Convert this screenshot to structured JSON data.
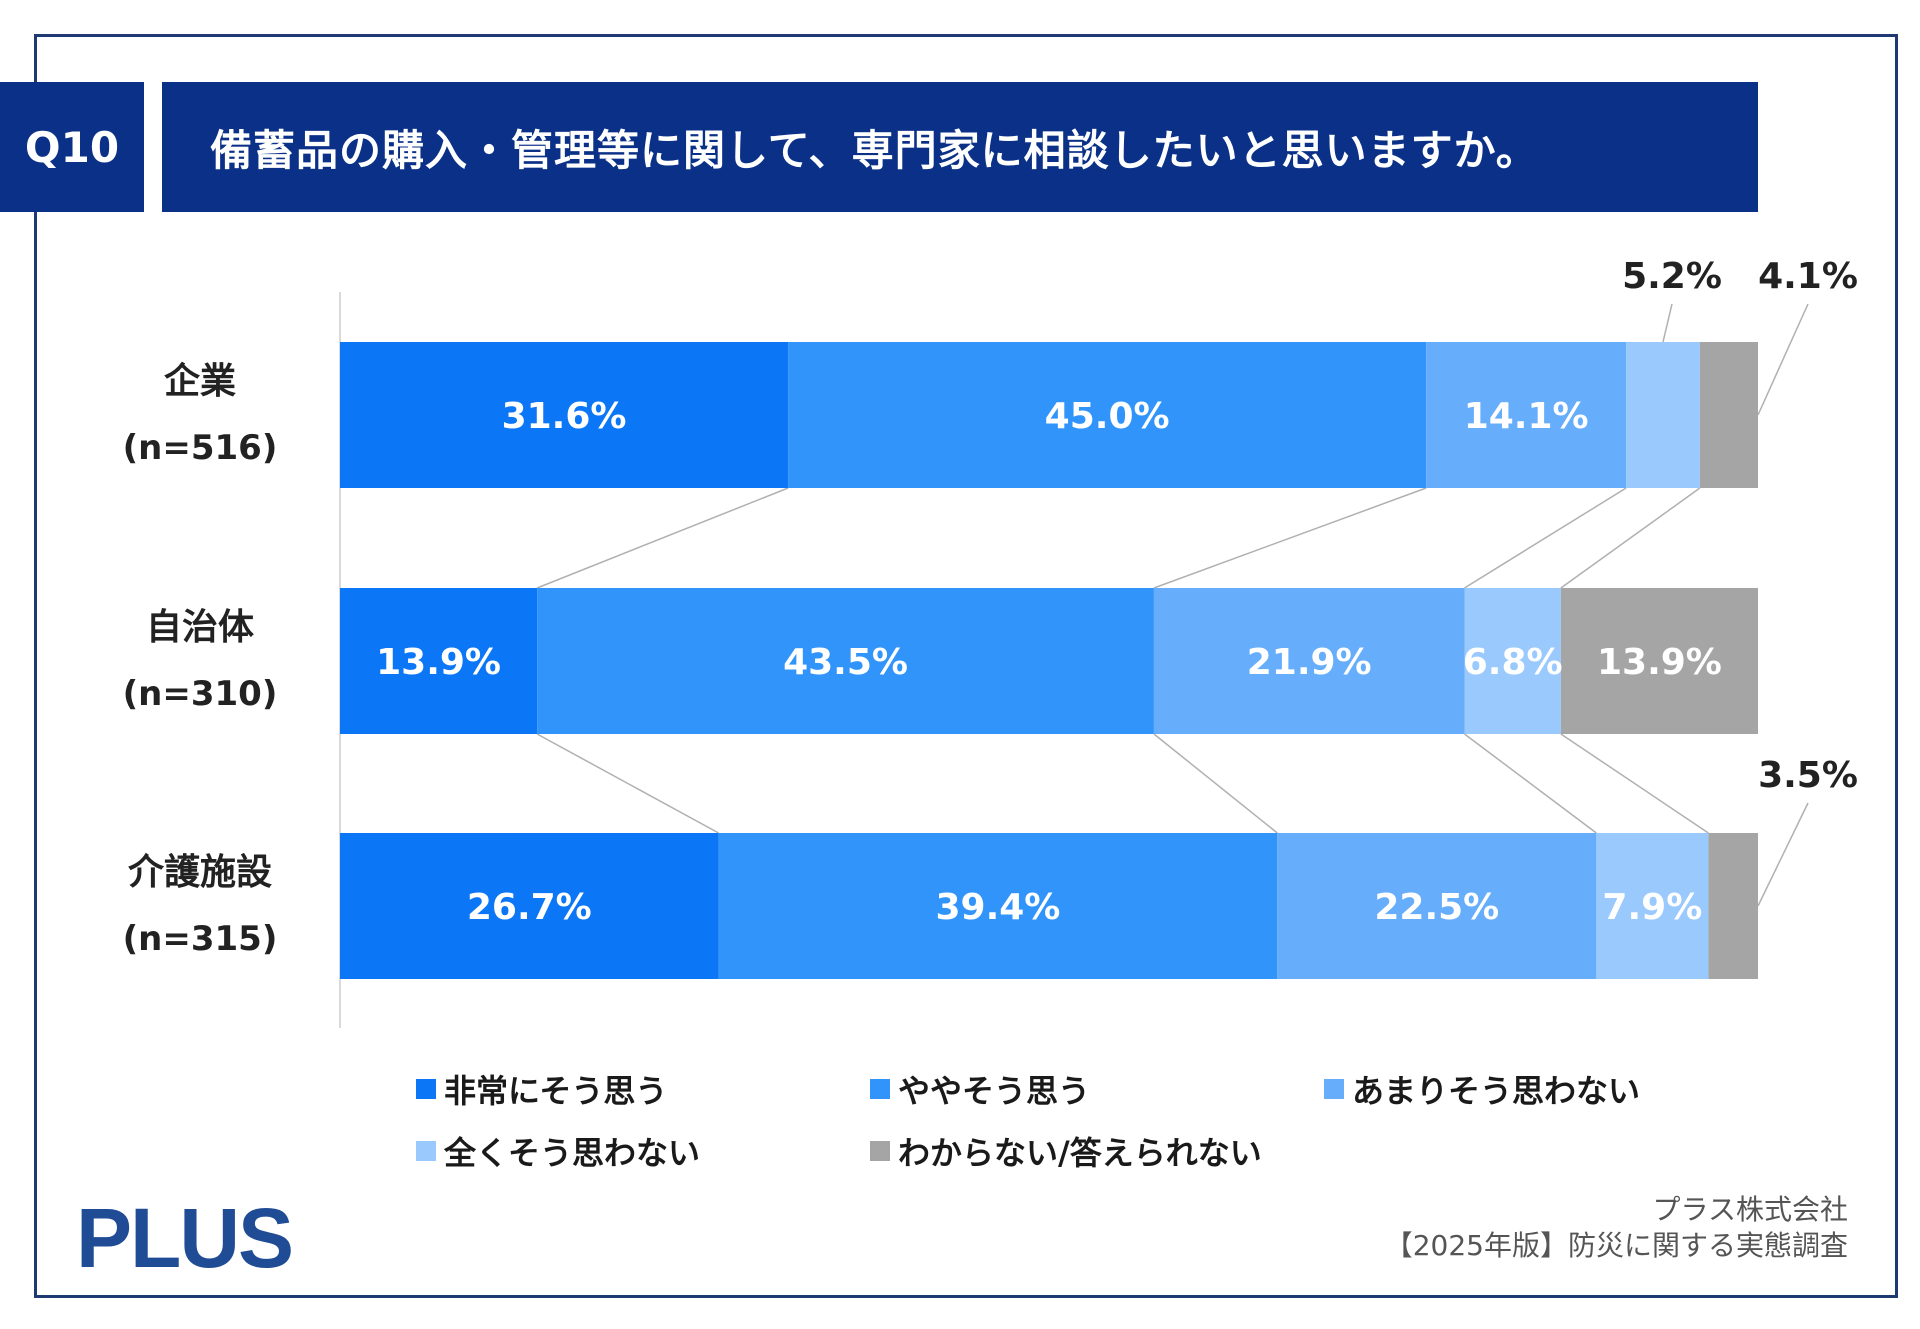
{
  "header": {
    "badge": "Q10",
    "title": "備蓄品の購入・管理等に関して、専門家に相談したいと思いますか。"
  },
  "colors": {
    "header_bg": "#0a3187",
    "frame": "#1f3a73"
  },
  "chart_data": {
    "type": "bar",
    "orientation": "horizontal",
    "stacked": true,
    "percent": true,
    "title": "備蓄品の購入・管理等に関して、専門家に相談したいと思いますか。",
    "categories": [
      {
        "name": "企業",
        "n": "(n=516)"
      },
      {
        "name": "自治体",
        "n": "(n=310)"
      },
      {
        "name": "介護施設",
        "n": "(n=315)"
      }
    ],
    "series": [
      {
        "name": "非常にそう思う",
        "color": "#0b76f6",
        "values": [
          31.6,
          13.9,
          26.7
        ],
        "labels": [
          "31.6%",
          "13.9%",
          "26.7%"
        ]
      },
      {
        "name": "ややそう思う",
        "color": "#3194fb",
        "values": [
          45.0,
          43.5,
          39.4
        ],
        "labels": [
          "45.0%",
          "43.5%",
          "39.4%"
        ]
      },
      {
        "name": "あまりそう思わない",
        "color": "#66adfb",
        "values": [
          14.1,
          21.9,
          22.5
        ],
        "labels": [
          "14.1%",
          "21.9%",
          "22.5%"
        ]
      },
      {
        "name": "全くそう思わない",
        "color": "#99c9fd",
        "values": [
          5.2,
          6.8,
          7.9
        ],
        "labels": [
          "5.2%",
          "6.8%",
          "7.9%"
        ]
      },
      {
        "name": "わからない/答えられない",
        "color": "#a5a5a5",
        "values": [
          4.1,
          13.9,
          3.5
        ],
        "labels": [
          "4.1%",
          "13.9%",
          "3.5%"
        ]
      }
    ],
    "xlim": [
      0,
      100
    ],
    "legend_position": "bottom"
  },
  "footer": {
    "logo": "PLUS",
    "source_line1": "プラス株式会社",
    "source_line2": "【2025年版】防災に関する実態調査"
  }
}
